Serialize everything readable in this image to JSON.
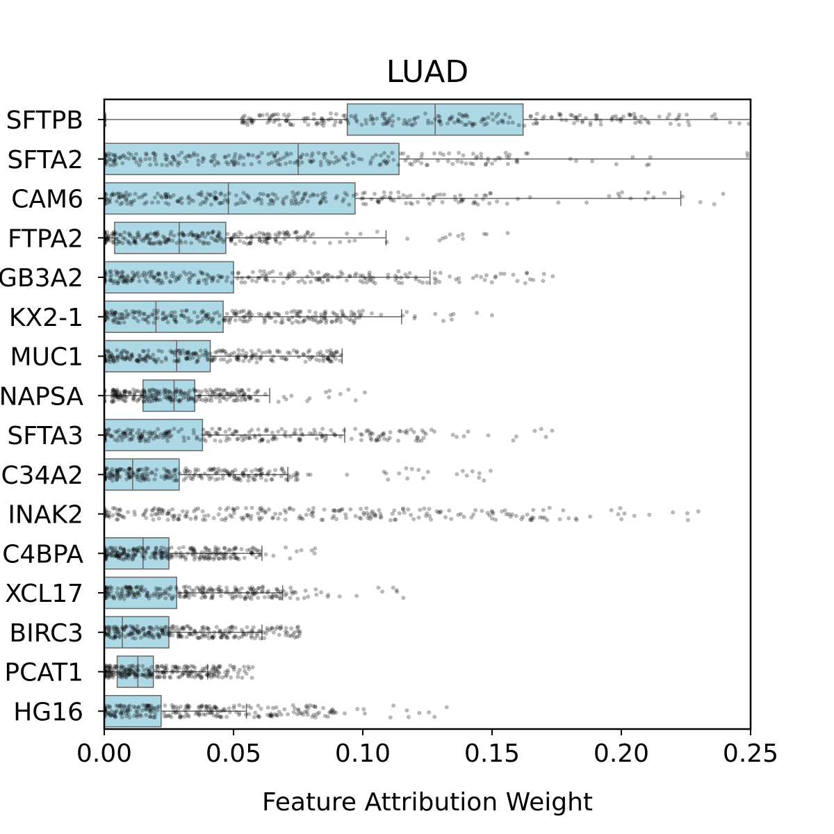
{
  "chart_data": {
    "type": "box",
    "title": "LUAD",
    "xlabel": "Feature Attribution Weight",
    "ylabel": "",
    "xlim": [
      0,
      0.25
    ],
    "x_ticks": [
      0.0,
      0.05,
      0.1,
      0.15,
      0.2,
      0.25
    ],
    "x_tick_labels": [
      "0.00",
      "0.05",
      "0.10",
      "0.15",
      "0.20",
      "0.25"
    ],
    "grid": false,
    "legend": "none",
    "box_color": "#add8e6",
    "box_edge_color": "#666666",
    "point_color": "#000000",
    "categories": [
      "SFTPB",
      "SFTA2",
      "CAM6",
      "FTPA2",
      "GB3A2",
      "KX2-1",
      "MUC1",
      "NAPSA",
      "SFTA3",
      "C34A2",
      "INAK2",
      "C4BPA",
      "XCL17",
      "BIRC3",
      "PCAT1",
      "HG16"
    ],
    "boxes": [
      {
        "label": "SFTPB",
        "whisker_low": 0.0,
        "q1": 0.094,
        "median": 0.128,
        "q3": 0.162,
        "whisker_high": 0.25
      },
      {
        "label": "SFTA2",
        "whisker_low": 0.0,
        "q1": 0.0,
        "median": 0.075,
        "q3": 0.114,
        "whisker_high": 0.25
      },
      {
        "label": "CAM6",
        "whisker_low": 0.0,
        "q1": 0.0,
        "median": 0.048,
        "q3": 0.097,
        "whisker_high": 0.223
      },
      {
        "label": "FTPA2",
        "whisker_low": 0.0,
        "q1": 0.004,
        "median": 0.029,
        "q3": 0.047,
        "whisker_high": 0.109
      },
      {
        "label": "GB3A2",
        "whisker_low": 0.0,
        "q1": 0.0,
        "median": 0.0,
        "q3": 0.05,
        "whisker_high": 0.126
      },
      {
        "label": "KX2-1",
        "whisker_low": 0.0,
        "q1": 0.0,
        "median": 0.02,
        "q3": 0.046,
        "whisker_high": 0.115
      },
      {
        "label": "MUC1",
        "whisker_low": 0.0,
        "q1": 0.0,
        "median": 0.028,
        "q3": 0.041,
        "whisker_high": 0.092
      },
      {
        "label": "NAPSA",
        "whisker_low": 0.0,
        "q1": 0.015,
        "median": 0.027,
        "q3": 0.035,
        "whisker_high": 0.064
      },
      {
        "label": "SFTA3",
        "whisker_low": 0.0,
        "q1": 0.0,
        "median": 0.0,
        "q3": 0.038,
        "whisker_high": 0.093
      },
      {
        "label": "C34A2",
        "whisker_low": 0.0,
        "q1": 0.0,
        "median": 0.011,
        "q3": 0.029,
        "whisker_high": 0.071
      },
      {
        "label": "INAK2",
        "whisker_low": 0.0,
        "q1": 0.0,
        "median": 0.0,
        "q3": 0.0,
        "whisker_high": 0.0
      },
      {
        "label": "C4BPA",
        "whisker_low": 0.0,
        "q1": 0.0,
        "median": 0.015,
        "q3": 0.025,
        "whisker_high": 0.061
      },
      {
        "label": "XCL17",
        "whisker_low": 0.0,
        "q1": 0.0,
        "median": 0.0,
        "q3": 0.028,
        "whisker_high": 0.069
      },
      {
        "label": "BIRC3",
        "whisker_low": 0.0,
        "q1": 0.0,
        "median": 0.007,
        "q3": 0.025,
        "whisker_high": 0.061
      },
      {
        "label": "PCAT1",
        "whisker_low": 0.0,
        "q1": 0.005,
        "median": 0.013,
        "q3": 0.019,
        "whisker_high": 0.04
      },
      {
        "label": "HG16",
        "whisker_low": 0.0,
        "q1": 0.0,
        "median": 0.0,
        "q3": 0.022,
        "whisker_high": 0.055
      }
    ],
    "point_spread": [
      {
        "label": "SFTPB",
        "min": 0.0,
        "max": 0.25,
        "dense_max": 0.21
      },
      {
        "label": "SFTA2",
        "min": 0.0,
        "max": 0.25,
        "dense_max": 0.16
      },
      {
        "label": "CAM6",
        "min": 0.0,
        "max": 0.25,
        "dense_max": 0.15
      },
      {
        "label": "FTPA2",
        "min": 0.0,
        "max": 0.157,
        "dense_max": 0.085
      },
      {
        "label": "GB3A2",
        "min": 0.0,
        "max": 0.175,
        "dense_max": 0.13
      },
      {
        "label": "KX2-1",
        "min": 0.0,
        "max": 0.15,
        "dense_max": 0.1
      },
      {
        "label": "MUC1",
        "min": 0.0,
        "max": 0.092,
        "dense_max": 0.085
      },
      {
        "label": "NAPSA",
        "min": 0.0,
        "max": 0.101,
        "dense_max": 0.06
      },
      {
        "label": "SFTA3",
        "min": 0.0,
        "max": 0.186,
        "dense_max": 0.125
      },
      {
        "label": "C34A2",
        "min": 0.0,
        "max": 0.154,
        "dense_max": 0.075
      },
      {
        "label": "INAK2",
        "min": 0.0,
        "max": 0.231,
        "dense_max": 0.17
      },
      {
        "label": "C4BPA",
        "min": 0.0,
        "max": 0.082,
        "dense_max": 0.058
      },
      {
        "label": "XCL17",
        "min": 0.0,
        "max": 0.117,
        "dense_max": 0.075
      },
      {
        "label": "BIRC3",
        "min": 0.0,
        "max": 0.076,
        "dense_max": 0.065
      },
      {
        "label": "PCAT1",
        "min": 0.0,
        "max": 0.059,
        "dense_max": 0.045
      },
      {
        "label": "HG16",
        "min": 0.0,
        "max": 0.133,
        "dense_max": 0.09
      }
    ]
  }
}
